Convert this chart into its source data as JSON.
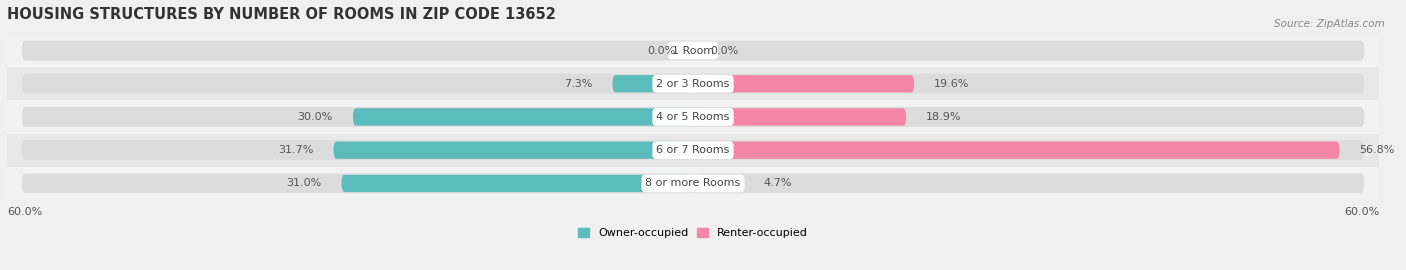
{
  "title": "HOUSING STRUCTURES BY NUMBER OF ROOMS IN ZIP CODE 13652",
  "source": "Source: ZipAtlas.com",
  "categories": [
    "1 Room",
    "2 or 3 Rooms",
    "4 or 5 Rooms",
    "6 or 7 Rooms",
    "8 or more Rooms"
  ],
  "owner_values": [
    0.0,
    7.3,
    30.0,
    31.7,
    31.0
  ],
  "renter_values": [
    0.0,
    19.6,
    18.9,
    56.8,
    4.7
  ],
  "owner_color": "#5bbcbb",
  "renter_color": "#f285a8",
  "bar_height": 0.52,
  "bg_bar_height": 0.6,
  "xlim_abs": 60.0,
  "background_color": "#f0f0f0",
  "bar_bg_color": "#dcdcdc",
  "row_bg_color_odd": "#e8e8e8",
  "row_bg_color_even": "#f2f2f2",
  "title_fontsize": 10.5,
  "label_fontsize": 8.0,
  "cat_fontsize": 8.0,
  "tick_fontsize": 8.0,
  "source_fontsize": 7.5,
  "legend_fontsize": 8.0,
  "value_color": "#555555",
  "category_text_color": "#444444"
}
